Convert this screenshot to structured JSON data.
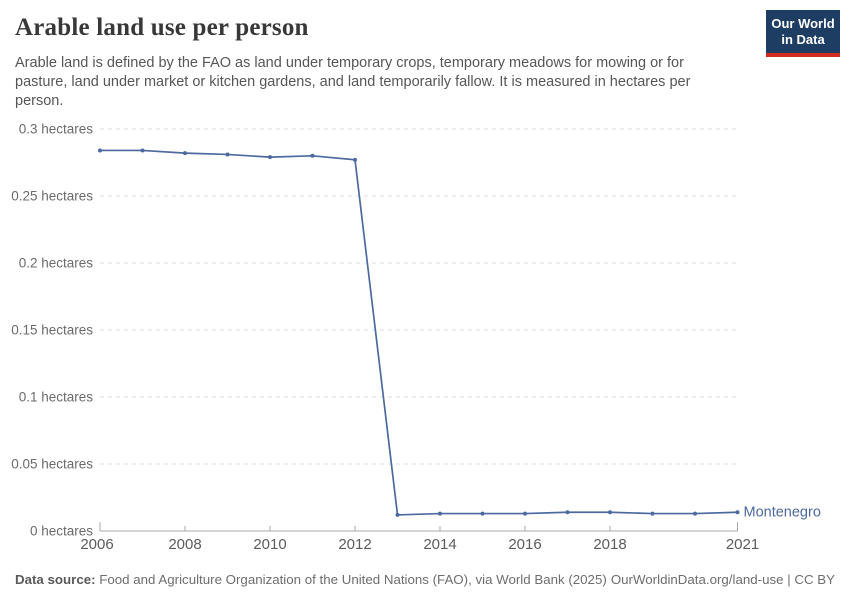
{
  "header": {
    "title": "Arable land use per person",
    "subtitle": "Arable land is defined by the FAO as land under temporary crops, temporary meadows for mowing or for pasture, land under market or kitchen gardens, and land temporarily fallow. It is measured in hectares per person.",
    "logo": {
      "line1": "Our World",
      "line2": "in Data",
      "background_color": "#1d3d63",
      "stripe_color": "#d42b21"
    }
  },
  "chart_data": {
    "type": "line",
    "title": "Arable land use per person",
    "unit": "hectares",
    "xlabel": "",
    "ylabel": "hectares",
    "xlim": [
      2006,
      2021
    ],
    "ylim": [
      0,
      0.3
    ],
    "x_ticks": [
      2006,
      2008,
      2010,
      2012,
      2014,
      2016,
      2018,
      2021
    ],
    "y_ticks": [
      0,
      0.05,
      0.1,
      0.15,
      0.2,
      0.25,
      0.3
    ],
    "grid": "horizontal-dashed",
    "legend_position": "end-of-line-label",
    "years": [
      2006,
      2007,
      2008,
      2009,
      2010,
      2011,
      2012,
      2013,
      2014,
      2015,
      2016,
      2017,
      2018,
      2019,
      2020,
      2021
    ],
    "series": [
      {
        "name": "Montenegro",
        "color": "#4c6aa0",
        "values": [
          0.284,
          0.284,
          0.282,
          0.281,
          0.279,
          0.28,
          0.277,
          0.012,
          0.013,
          0.013,
          0.013,
          0.014,
          0.014,
          0.013,
          0.013,
          0.014
        ]
      }
    ]
  },
  "footer": {
    "source_label": "Data source:",
    "source_text": "Food and Agriculture Organization of the United Nations (FAO), via World Bank (2025)",
    "link_text": "OurWorldinData.org/land-use | CC BY"
  },
  "colors": {
    "line": "#4c6aa0",
    "title_text": "#383838",
    "subtitle_text": "#565656",
    "axis_text": "#5c5c5c",
    "gridline": "#dddddd",
    "logo_background": "#1d3d63",
    "logo_stripe": "#d42b21"
  }
}
